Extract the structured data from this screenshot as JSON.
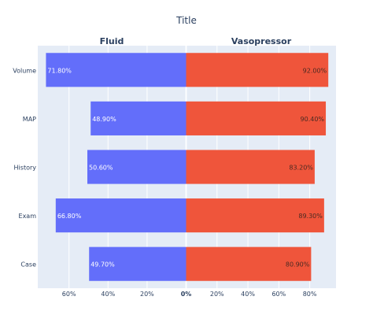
{
  "chart_data": {
    "type": "bar",
    "orientation": "horizontal",
    "layout": "butterfly",
    "title": "Title",
    "categories": [
      "Volume",
      "MAP",
      "History",
      "Exam",
      "Case"
    ],
    "series": [
      {
        "name": "Fluid",
        "color": "#636efa",
        "values": [
          71.8,
          48.9,
          50.6,
          66.8,
          49.7
        ],
        "labels": [
          "71.80%",
          "48.90%",
          "50.60%",
          "66.80%",
          "49.70%"
        ],
        "xlim": [
          76,
          0
        ],
        "ticks": [
          60,
          40,
          20,
          0
        ],
        "tick_labels": [
          "60%",
          "40%",
          "20%",
          "0%"
        ]
      },
      {
        "name": "Vasopressor",
        "color": "#ef553b",
        "values": [
          92.0,
          90.4,
          83.2,
          89.3,
          80.9
        ],
        "labels": [
          "92.00%",
          "90.40%",
          "83.20%",
          "89.30%",
          "80.90%"
        ],
        "xlim": [
          0,
          97
        ],
        "ticks": [
          0,
          20,
          40,
          60,
          80
        ],
        "tick_labels": [
          "",
          "20%",
          "40%",
          "60%",
          "80%"
        ]
      }
    ],
    "plot_background": "#e5ecf6",
    "grid": true
  }
}
